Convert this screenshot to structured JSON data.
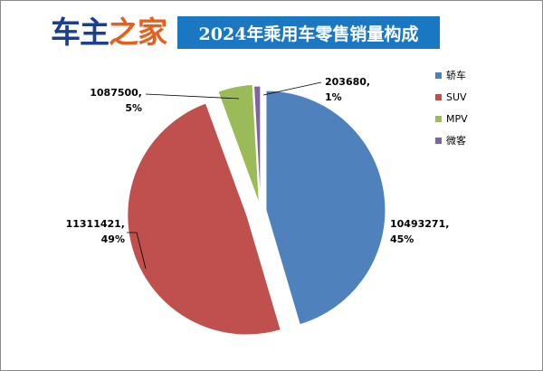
{
  "logo": {
    "part1": "车主",
    "part2": "之家"
  },
  "colors": {
    "title_bg": "#1a78c2",
    "logo_dark": "#1b3f8f",
    "logo_orange": "#e85f1c"
  },
  "chart_data": {
    "type": "pie",
    "title": "2024年乘用车零售销量构成",
    "legend_position": "right",
    "slices": [
      {
        "name": "轿车",
        "value": 10493271,
        "percent": "45%",
        "color": "#4f81bd",
        "value_label": "10493271,",
        "percent_label": "45%"
      },
      {
        "name": "SUV",
        "value": 11311421,
        "percent": "49%",
        "color": "#c0504d",
        "value_label": "11311421,",
        "percent_label": "49%"
      },
      {
        "name": "MPV",
        "value": 1087500,
        "percent": "5%",
        "color": "#9bbb59",
        "value_label": "1087500,",
        "percent_label": "5%"
      },
      {
        "name": "微客",
        "value": 203680,
        "percent": "1%",
        "color": "#8064a2",
        "value_label": "203680,",
        "percent_label": "1%"
      }
    ]
  }
}
